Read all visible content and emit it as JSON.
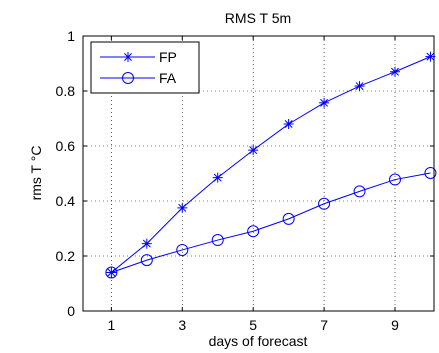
{
  "chart_data": {
    "type": "line",
    "title": "RMS T 5m",
    "xlabel": "days of forecast",
    "ylabel": "rms T °C",
    "xlim": [
      0.2,
      10.1
    ],
    "ylim": [
      0,
      1
    ],
    "xticks": [
      1,
      3,
      5,
      7,
      9
    ],
    "yticks": [
      0,
      0.2,
      0.4,
      0.6,
      0.8,
      1
    ],
    "grid": true,
    "legend_position": "top-left",
    "x": [
      1,
      2,
      3,
      4,
      5,
      6,
      7,
      8,
      9,
      10
    ],
    "series": [
      {
        "name": "FP",
        "marker": "asterisk",
        "color": "#0000ff",
        "values": [
          0.14,
          0.245,
          0.375,
          0.485,
          0.585,
          0.68,
          0.757,
          0.818,
          0.87,
          0.925
        ]
      },
      {
        "name": "FA",
        "marker": "circle",
        "color": "#0000ff",
        "values": [
          0.14,
          0.185,
          0.222,
          0.258,
          0.29,
          0.335,
          0.39,
          0.435,
          0.478,
          0.502
        ]
      }
    ]
  }
}
